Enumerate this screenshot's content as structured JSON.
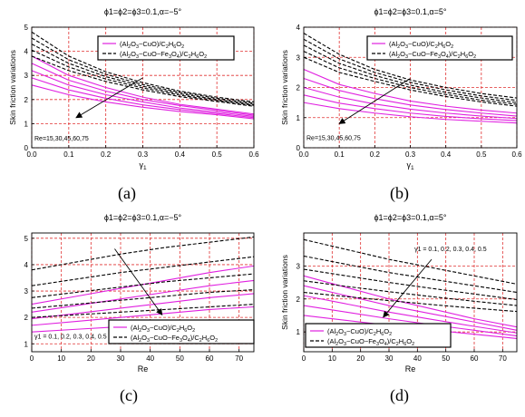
{
  "chart_data": [
    {
      "id": "a",
      "type": "line",
      "title": "ϕ1=ϕ2=ϕ3=0.1,α=−5°",
      "caption": "(a)",
      "xlabel": "γ1",
      "ylabel": "Skin friction variations",
      "xlim": [
        0,
        0.6
      ],
      "ylim": [
        0,
        5
      ],
      "xticks": [
        "0.0",
        "0.1",
        "0.2",
        "0.3",
        "0.4",
        "0.5",
        "0.6"
      ],
      "yticks": [
        "0",
        "1",
        "2",
        "3",
        "4",
        "5"
      ],
      "grid": true,
      "legend_position": "top-left",
      "legend": [
        "(Al2O3−CuO)/C2H6O2",
        "(Al2O3−CuO−Fe3O4)/C2H6O2"
      ],
      "annotation": "Re=15,30,45,60,75",
      "annotation_x": 0.0,
      "annotation_y": 0.3,
      "arrow": {
        "from": [
          0.3,
          2.9
        ],
        "to": [
          0.12,
          1.25
        ]
      },
      "x": [
        0,
        0.1,
        0.2,
        0.3,
        0.4,
        0.5,
        0.6
      ],
      "series": [
        {
          "group": "Al2O3-CuO",
          "style": "solid",
          "values": [
            3.8,
            3.0,
            2.5,
            2.1,
            1.8,
            1.6,
            1.4
          ]
        },
        {
          "group": "Al2O3-CuO",
          "style": "solid",
          "values": [
            3.5,
            2.8,
            2.35,
            2.0,
            1.75,
            1.55,
            1.35
          ]
        },
        {
          "group": "Al2O3-CuO",
          "style": "solid",
          "values": [
            3.2,
            2.6,
            2.2,
            1.9,
            1.65,
            1.48,
            1.3
          ]
        },
        {
          "group": "Al2O3-CuO",
          "style": "solid",
          "values": [
            2.9,
            2.4,
            2.05,
            1.78,
            1.58,
            1.42,
            1.25
          ]
        },
        {
          "group": "Al2O3-CuO",
          "style": "solid",
          "values": [
            2.6,
            2.2,
            1.9,
            1.68,
            1.5,
            1.37,
            1.2
          ]
        },
        {
          "group": "Al2O3-CuO-Fe3O4",
          "style": "dashed",
          "values": [
            4.8,
            3.8,
            3.15,
            2.7,
            2.35,
            2.1,
            1.9
          ]
        },
        {
          "group": "Al2O3-CuO-Fe3O4",
          "style": "dashed",
          "values": [
            4.55,
            3.65,
            3.05,
            2.62,
            2.3,
            2.05,
            1.85
          ]
        },
        {
          "group": "Al2O3-CuO-Fe3O4",
          "style": "dashed",
          "values": [
            4.3,
            3.5,
            2.95,
            2.55,
            2.24,
            2.0,
            1.8
          ]
        },
        {
          "group": "Al2O3-CuO-Fe3O4",
          "style": "dashed",
          "values": [
            4.05,
            3.35,
            2.85,
            2.48,
            2.18,
            1.96,
            1.76
          ]
        },
        {
          "group": "Al2O3-CuO-Fe3O4",
          "style": "dashed",
          "values": [
            3.8,
            3.2,
            2.75,
            2.4,
            2.12,
            1.92,
            1.72
          ]
        }
      ]
    },
    {
      "id": "b",
      "type": "line",
      "title": "ϕ1=ϕ2=ϕ3=0.1,α=5°",
      "caption": "(b)",
      "xlabel": "γ1",
      "ylabel": "Skin friction variations",
      "xlim": [
        0,
        0.6
      ],
      "ylim": [
        0,
        4
      ],
      "xticks": [
        "0.0",
        "0.1",
        "0.2",
        "0.3",
        "0.4",
        "0.5",
        "0.6"
      ],
      "yticks": [
        "0",
        "1",
        "2",
        "3",
        "4"
      ],
      "grid": true,
      "legend_position": "top-right",
      "legend": [
        "(Al2O3−CuO)/C2H6O2",
        "(Al2O3−CuO−Fe3O4)/C2H6O2"
      ],
      "annotation": "Re=15,30,45,60,75",
      "annotation_x": 0.0,
      "annotation_y": 0.25,
      "arrow": {
        "from": [
          0.3,
          2.3
        ],
        "to": [
          0.1,
          0.8
        ]
      },
      "x": [
        0,
        0.1,
        0.2,
        0.3,
        0.4,
        0.5,
        0.6
      ],
      "series": [
        {
          "group": "Al2O3-CuO",
          "style": "solid",
          "values": [
            2.6,
            2.1,
            1.8,
            1.55,
            1.38,
            1.25,
            1.15
          ]
        },
        {
          "group": "Al2O3-CuO",
          "style": "solid",
          "values": [
            2.3,
            1.9,
            1.63,
            1.42,
            1.27,
            1.15,
            1.05
          ]
        },
        {
          "group": "Al2O3-CuO",
          "style": "solid",
          "values": [
            2.0,
            1.68,
            1.45,
            1.28,
            1.15,
            1.05,
            0.97
          ]
        },
        {
          "group": "Al2O3-CuO",
          "style": "solid",
          "values": [
            1.75,
            1.48,
            1.3,
            1.15,
            1.04,
            0.96,
            0.9
          ]
        },
        {
          "group": "Al2O3-CuO",
          "style": "solid",
          "values": [
            1.5,
            1.3,
            1.15,
            1.03,
            0.94,
            0.88,
            0.82
          ]
        },
        {
          "group": "Al2O3-CuO-Fe3O4",
          "style": "dashed",
          "values": [
            3.8,
            3.1,
            2.6,
            2.25,
            2.0,
            1.8,
            1.65
          ]
        },
        {
          "group": "Al2O3-CuO-Fe3O4",
          "style": "dashed",
          "values": [
            3.6,
            2.95,
            2.5,
            2.17,
            1.92,
            1.72,
            1.57
          ]
        },
        {
          "group": "Al2O3-CuO-Fe3O4",
          "style": "dashed",
          "values": [
            3.4,
            2.8,
            2.4,
            2.08,
            1.84,
            1.65,
            1.5
          ]
        },
        {
          "group": "Al2O3-CuO-Fe3O4",
          "style": "dashed",
          "values": [
            3.2,
            2.65,
            2.3,
            2.0,
            1.77,
            1.58,
            1.44
          ]
        },
        {
          "group": "Al2O3-CuO-Fe3O4",
          "style": "dashed",
          "values": [
            3.0,
            2.5,
            2.2,
            1.92,
            1.7,
            1.52,
            1.38
          ]
        }
      ]
    },
    {
      "id": "c",
      "type": "line",
      "title": "ϕ1=ϕ2=ϕ3=0.1,α=−5°",
      "caption": "(c)",
      "xlabel": "Re",
      "ylabel": "",
      "xlim": [
        0,
        75
      ],
      "ylim": [
        0.7,
        5.2
      ],
      "xticks": [
        "0",
        "10",
        "20",
        "30",
        "40",
        "50",
        "60",
        "70"
      ],
      "yticks": [
        "1",
        "2",
        "3",
        "4",
        "5"
      ],
      "grid": true,
      "legend_position": "bottom-right",
      "legend": [
        "(Al2O3−CuO)/C2H6O2",
        "(Al2O3−CuO−Fe3O4)/C2H6O2"
      ],
      "annotation": "γ1 = 0.1, 0.2, 0.3, 0.4, 0.5",
      "annotation_x": 0,
      "annotation_y": 1.2,
      "arrow": {
        "from": [
          28,
          4.6
        ],
        "to": [
          44,
          2.1
        ]
      },
      "x": [
        0,
        15,
        30,
        45,
        60,
        75
      ],
      "series": [
        {
          "group": "Al2O3-CuO",
          "style": "solid",
          "values": [
            2.5,
            2.8,
            3.1,
            3.4,
            3.7,
            3.95
          ]
        },
        {
          "group": "Al2O3-CuO",
          "style": "solid",
          "values": [
            2.2,
            2.45,
            2.7,
            2.95,
            3.2,
            3.4
          ]
        },
        {
          "group": "Al2O3-CuO",
          "style": "solid",
          "values": [
            1.95,
            2.15,
            2.35,
            2.55,
            2.75,
            2.9
          ]
        },
        {
          "group": "Al2O3-CuO",
          "style": "solid",
          "values": [
            1.7,
            1.85,
            2.0,
            2.15,
            2.3,
            2.4
          ]
        },
        {
          "group": "Al2O3-CuO",
          "style": "solid",
          "values": [
            1.45,
            1.55,
            1.65,
            1.75,
            1.85,
            1.9
          ]
        },
        {
          "group": "Al2O3-CuO-Fe3O4",
          "style": "dashed",
          "values": [
            3.8,
            4.1,
            4.4,
            4.65,
            4.85,
            5.05
          ]
        },
        {
          "group": "Al2O3-CuO-Fe3O4",
          "style": "dashed",
          "values": [
            3.2,
            3.45,
            3.7,
            3.9,
            4.1,
            4.3
          ]
        },
        {
          "group": "Al2O3-CuO-Fe3O4",
          "style": "dashed",
          "values": [
            2.75,
            2.95,
            3.15,
            3.35,
            3.5,
            3.65
          ]
        },
        {
          "group": "Al2O3-CuO-Fe3O4",
          "style": "dashed",
          "values": [
            2.35,
            2.5,
            2.65,
            2.8,
            2.95,
            3.05
          ]
        },
        {
          "group": "Al2O3-CuO-Fe3O4",
          "style": "dashed",
          "values": [
            2.0,
            2.1,
            2.2,
            2.3,
            2.4,
            2.5
          ]
        }
      ]
    },
    {
      "id": "d",
      "type": "line",
      "title": "ϕ1=ϕ2=ϕ3=0.1,α=5°",
      "caption": "(d)",
      "xlabel": "Re",
      "ylabel": "Skin friction variations",
      "xlim": [
        0,
        75
      ],
      "ylim": [
        0.4,
        4.0
      ],
      "xticks": [
        "0",
        "10",
        "20",
        "30",
        "40",
        "50",
        "60",
        "70"
      ],
      "yticks": [
        "1",
        "2",
        "3"
      ],
      "grid": true,
      "legend_position": "bottom-left",
      "legend": [
        "(Al2O3−CuO)/C2H6O2",
        "(Al2O3−CuO−Fe3O4)/C2H6O2"
      ],
      "annotation": "γ1 = 0.1, 0.2, 0.3, 0.4, 0.5",
      "annotation_x": 38,
      "annotation_y": 3.45,
      "arrow": {
        "from": [
          45,
          3.2
        ],
        "to": [
          28,
          1.45
        ]
      },
      "x": [
        0,
        15,
        30,
        45,
        60,
        75
      ],
      "series": [
        {
          "group": "Al2O3-CuO",
          "style": "solid",
          "values": [
            2.7,
            2.35,
            2.0,
            1.7,
            1.4,
            1.15
          ]
        },
        {
          "group": "Al2O3-CuO",
          "style": "solid",
          "values": [
            2.4,
            2.1,
            1.8,
            1.55,
            1.3,
            1.05
          ]
        },
        {
          "group": "Al2O3-CuO",
          "style": "solid",
          "values": [
            2.1,
            1.85,
            1.6,
            1.38,
            1.17,
            0.97
          ]
        },
        {
          "group": "Al2O3-CuO",
          "style": "solid",
          "values": [
            1.8,
            1.6,
            1.4,
            1.22,
            1.05,
            0.88
          ]
        },
        {
          "group": "Al2O3-CuO",
          "style": "solid",
          "values": [
            1.5,
            1.35,
            1.2,
            1.06,
            0.93,
            0.8
          ]
        },
        {
          "group": "Al2O3-CuO-Fe3O4",
          "style": "dashed",
          "values": [
            3.8,
            3.5,
            3.2,
            2.95,
            2.7,
            2.45
          ]
        },
        {
          "group": "Al2O3-CuO-Fe3O4",
          "style": "dashed",
          "values": [
            3.3,
            3.05,
            2.8,
            2.6,
            2.4,
            2.2
          ]
        },
        {
          "group": "Al2O3-CuO-Fe3O4",
          "style": "dashed",
          "values": [
            2.9,
            2.7,
            2.5,
            2.32,
            2.15,
            1.98
          ]
        },
        {
          "group": "Al2O3-CuO-Fe3O4",
          "style": "dashed",
          "values": [
            2.55,
            2.38,
            2.22,
            2.07,
            1.93,
            1.8
          ]
        },
        {
          "group": "Al2O3-CuO-Fe3O4",
          "style": "dashed",
          "values": [
            2.2,
            2.07,
            1.95,
            1.83,
            1.72,
            1.62
          ]
        }
      ]
    }
  ],
  "colors": {
    "solid_series": "#e020e0",
    "dashed_series": "#000000",
    "grid": "#e03030",
    "frame": "#000000"
  }
}
